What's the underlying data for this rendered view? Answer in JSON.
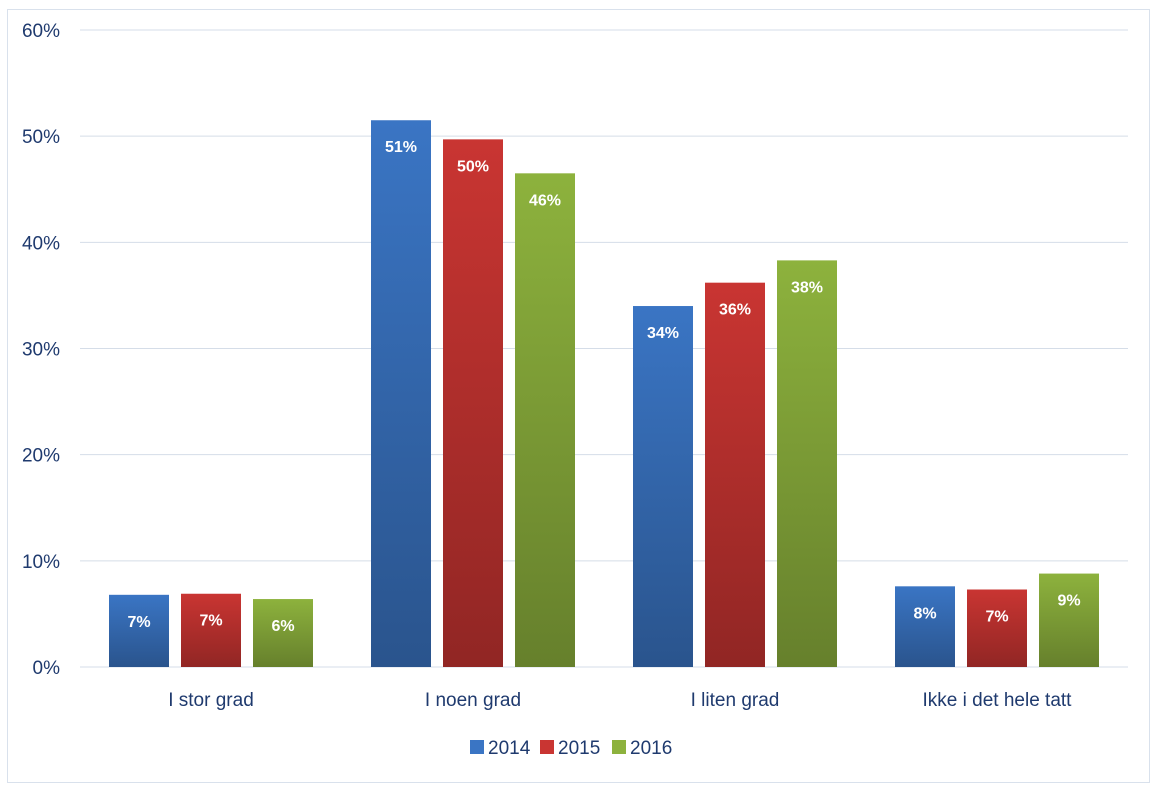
{
  "chart_data": {
    "type": "bar",
    "categories": [
      "I stor grad",
      "I noen grad",
      "I liten grad",
      "Ikke i det hele tatt"
    ],
    "series": [
      {
        "name": "2014",
        "values": [
          6.8,
          51.5,
          34.0,
          7.6
        ],
        "labels": [
          "7%",
          "51%",
          "34%",
          "8%"
        ],
        "color": "#3a75c4"
      },
      {
        "name": "2015",
        "values": [
          6.9,
          49.7,
          36.2,
          7.3
        ],
        "labels": [
          "7%",
          "50%",
          "36%",
          "7%"
        ],
        "color": "#c93532"
      },
      {
        "name": "2016",
        "values": [
          6.4,
          46.5,
          38.3,
          8.8
        ],
        "labels": [
          "6%",
          "46%",
          "38%",
          "9%"
        ],
        "color": "#8db23d"
      }
    ],
    "ylim": [
      0,
      60
    ],
    "yticks": [
      "0%",
      "10%",
      "20%",
      "30%",
      "40%",
      "50%",
      "60%"
    ],
    "grid": true,
    "legend_position": "bottom",
    "title": "",
    "xlabel": "",
    "ylabel": ""
  }
}
